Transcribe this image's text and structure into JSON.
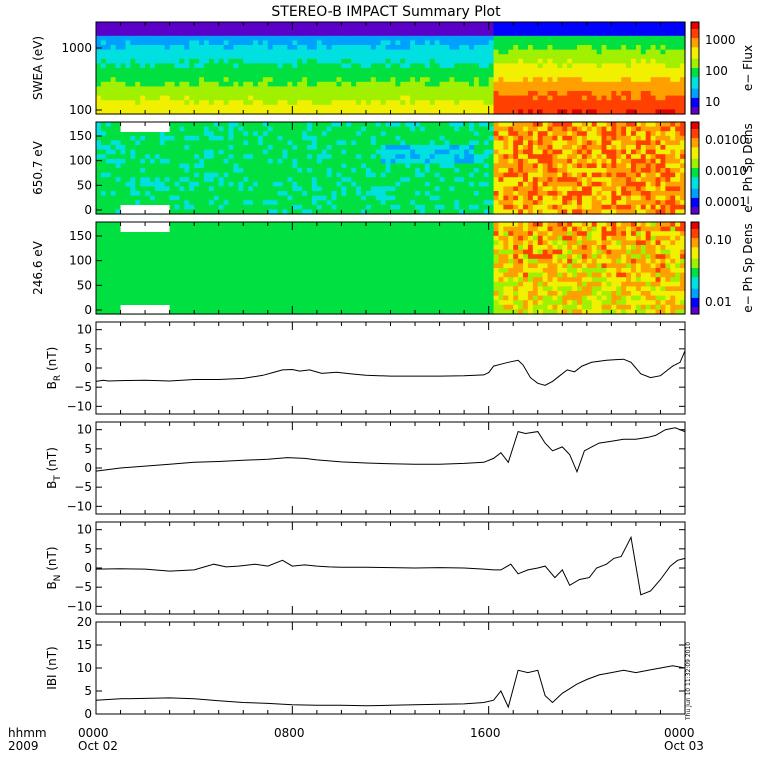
{
  "title": "STEREO-B IMPACT Summary Plot",
  "colors": {
    "spectrogram_scale": [
      "#5a00c8",
      "#0000ff",
      "#00a0ff",
      "#00e0e0",
      "#00e040",
      "#a0f000",
      "#f0f000",
      "#ffa000",
      "#ff4000",
      "#e00000"
    ],
    "line": "#000000",
    "background": "#ffffff"
  },
  "time_axis": {
    "row1_labels": [
      "hhmm",
      "0000",
      "0800",
      "1600",
      "0000"
    ],
    "row2_labels": [
      "2009",
      "Oct 02",
      "Oct 03"
    ],
    "hours": [
      0,
      8,
      16,
      24
    ]
  },
  "timestamp": "Thu Jun 10 11:32:09 2010",
  "chart_data": [
    {
      "type": "heatmap",
      "ylabel": "SWEA (eV)",
      "colorbar_label": "e− Flux",
      "colorbar_ticks": [
        "1000",
        "100",
        "10"
      ],
      "y_ticks": [
        "1000",
        "100"
      ],
      "y_scale": "log",
      "xlim": [
        0,
        24
      ],
      "change_hour": 16.2
    },
    {
      "type": "heatmap",
      "ylabel": "650.7 eV",
      "colorbar_label": "e− Ph Sp Dens",
      "colorbar_ticks": [
        "0.0100",
        "0.0010",
        "0.0001"
      ],
      "y_ticks": [
        "150",
        "100",
        "50",
        "0"
      ],
      "ylim": [
        0,
        180
      ],
      "xlim": [
        0,
        24
      ],
      "change_hour": 16.2
    },
    {
      "type": "heatmap",
      "ylabel": "246.6 eV",
      "colorbar_label": "e− Ph Sp Dens",
      "colorbar_ticks": [
        "0.10",
        "0.01"
      ],
      "y_ticks": [
        "150",
        "100",
        "50",
        "0"
      ],
      "ylim": [
        0,
        180
      ],
      "xlim": [
        0,
        24
      ],
      "change_hour": 16.2
    },
    {
      "type": "line",
      "ylabel": "B_R (nT)",
      "ylabel_main": "B",
      "ylabel_sub": "R",
      "ylabel_unit": " (nT)",
      "ylim": [
        -12,
        12
      ],
      "y_ticks": [
        "10",
        "5",
        "0",
        "−5",
        "−10"
      ],
      "x": [
        0,
        0.3,
        0.5,
        1,
        2,
        3,
        4,
        5,
        6,
        6.8,
        7.2,
        7.6,
        8,
        8.3,
        8.7,
        9.2,
        9.8,
        10.5,
        11,
        12,
        13,
        14,
        15,
        15.8,
        16,
        16.2,
        16.5,
        16.8,
        17.2,
        17.4,
        17.7,
        18,
        18.3,
        18.6,
        18.9,
        19.2,
        19.5,
        19.8,
        20.2,
        20.8,
        21.2,
        21.5,
        21.8,
        22.2,
        22.6,
        23,
        23.3,
        23.5,
        23.8,
        24
      ],
      "values": [
        -3.5,
        -3.2,
        -3.4,
        -3.3,
        -3.2,
        -3.4,
        -3,
        -3,
        -2.7,
        -1.9,
        -1.2,
        -0.5,
        -0.4,
        -0.8,
        -0.5,
        -1.4,
        -1.1,
        -1.6,
        -1.9,
        -2.1,
        -2.1,
        -2.1,
        -2.0,
        -1.8,
        -1.2,
        0.5,
        1.0,
        1.5,
        2.0,
        0.8,
        -2.5,
        -4.0,
        -4.5,
        -3.5,
        -2.0,
        -0.5,
        -1.0,
        0.5,
        1.5,
        2.0,
        2.2,
        2.3,
        1.5,
        -1.5,
        -2.5,
        -2.0,
        -0.5,
        0.5,
        1.5,
        4.5
      ]
    },
    {
      "type": "line",
      "ylabel": "B_T (nT)",
      "ylabel_main": "B",
      "ylabel_sub": "T",
      "ylabel_unit": " (nT)",
      "ylim": [
        -12,
        12
      ],
      "y_ticks": [
        "10",
        "5",
        "0",
        "−5",
        "−10"
      ],
      "x": [
        0,
        1,
        2,
        3,
        4,
        5,
        6,
        7,
        7.8,
        8.5,
        9,
        10,
        11,
        12,
        13,
        14,
        15,
        15.8,
        16.2,
        16.5,
        16.8,
        17.2,
        17.5,
        18,
        18.3,
        18.6,
        19,
        19.3,
        19.6,
        19.9,
        20.2,
        20.5,
        21,
        21.5,
        22,
        22.5,
        22.8,
        23.2,
        23.6,
        24
      ],
      "values": [
        -0.8,
        0,
        0.5,
        1,
        1.5,
        1.7,
        2,
        2.3,
        2.7,
        2.5,
        2.1,
        1.6,
        1.3,
        1.1,
        1.0,
        1.0,
        1.2,
        1.5,
        2.5,
        4.0,
        1.5,
        9.5,
        9.0,
        9.5,
        6.5,
        4.5,
        5.5,
        3.5,
        -1.0,
        4.5,
        5.5,
        6.5,
        7.0,
        7.5,
        7.5,
        8.0,
        8.5,
        10.0,
        10.5,
        9.5
      ]
    },
    {
      "type": "line",
      "ylabel": "B_N (nT)",
      "ylabel_main": "B",
      "ylabel_sub": "N",
      "ylabel_unit": " (nT)",
      "ylim": [
        -12,
        12
      ],
      "y_ticks": [
        "10",
        "5",
        "0",
        "−5",
        "−10"
      ],
      "x": [
        0,
        1,
        2,
        3,
        4,
        4.8,
        5.3,
        5.8,
        6.5,
        7,
        7.6,
        8,
        8.5,
        9,
        9.5,
        10,
        11,
        12,
        13,
        14,
        15,
        15.8,
        16.2,
        16.5,
        16.9,
        17.2,
        17.6,
        18,
        18.3,
        18.7,
        19,
        19.3,
        19.7,
        20.1,
        20.4,
        20.8,
        21.1,
        21.4,
        21.8,
        22.2,
        22.6,
        23,
        23.4,
        23.7,
        24
      ],
      "values": [
        -0.3,
        -0.2,
        -0.3,
        -0.8,
        -0.5,
        1,
        0.3,
        0.5,
        1,
        0.5,
        2.0,
        0.5,
        0.8,
        0.5,
        0.3,
        0.2,
        0.2,
        0.1,
        0.0,
        0.1,
        0.0,
        -0.3,
        -0.5,
        -0.5,
        1.0,
        -1.5,
        -0.5,
        0.0,
        0.5,
        -2.5,
        -0.5,
        -4.5,
        -3.0,
        -2.5,
        0.0,
        1.0,
        2.5,
        3.0,
        8.0,
        -7.0,
        -6.0,
        -3.0,
        0.5,
        2.0,
        2.5
      ]
    },
    {
      "type": "line",
      "ylabel": "|B| (nT)",
      "ylabel_main": "IBI",
      "ylabel_unit": " (nT)",
      "ylim": [
        0,
        20
      ],
      "y_ticks": [
        "20",
        "15",
        "10",
        "5",
        "0"
      ],
      "x": [
        0,
        1,
        2,
        3,
        4,
        5,
        6,
        7,
        8,
        9,
        10,
        11,
        12,
        13,
        14,
        15,
        15.8,
        16.2,
        16.5,
        16.8,
        17.2,
        17.6,
        18,
        18.3,
        18.6,
        19,
        19.3,
        19.6,
        20,
        20.5,
        21,
        21.5,
        22,
        22.5,
        23,
        23.5,
        24
      ],
      "values": [
        3.0,
        3.3,
        3.4,
        3.5,
        3.3,
        2.9,
        2.5,
        2.3,
        2.0,
        1.9,
        1.9,
        1.8,
        1.9,
        2.0,
        2.1,
        2.2,
        2.5,
        3.0,
        5.0,
        1.5,
        9.5,
        9.0,
        9.5,
        4.0,
        2.5,
        4.5,
        5.5,
        6.5,
        7.5,
        8.5,
        9.0,
        9.5,
        9.0,
        9.5,
        10.0,
        10.5,
        10.0
      ]
    }
  ]
}
